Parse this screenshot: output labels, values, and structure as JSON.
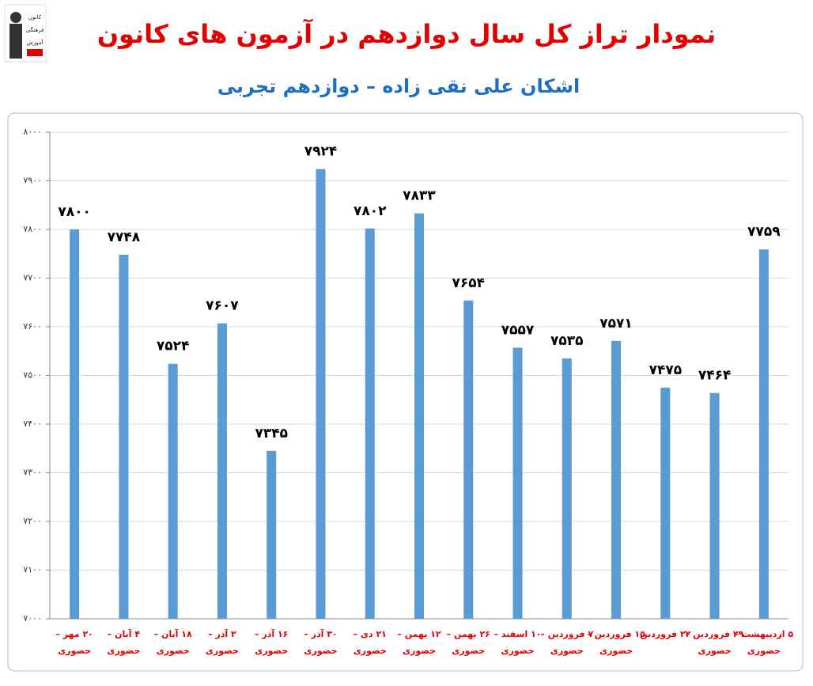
{
  "logo": {
    "lines": [
      "کانون",
      "فرهنگی",
      "آموزش"
    ]
  },
  "chart_data": {
    "type": "bar",
    "title": "نمودار تراز کل سال دوازدهم در آزمون های کانون",
    "subtitle": "اشکان علی نقی زاده – دوازدهم تجربی",
    "categories": [
      [
        "۲۰ مهر –",
        "حضوری"
      ],
      [
        "۴ آبان –",
        "حضوری"
      ],
      [
        "۱۸ آبان –",
        "حضوری"
      ],
      [
        "۲ آذر –",
        "حضوری"
      ],
      [
        "۱۶ آذر –",
        "حضوری"
      ],
      [
        "۳۰ آذر –",
        "حضوری"
      ],
      [
        "۲۱ دی –",
        "حضوری"
      ],
      [
        "۱۲ بهمن –",
        "حضوری"
      ],
      [
        "۲۶ بهمن –",
        "حضوری"
      ],
      [
        "۱۰ اسفند –",
        "حضوری"
      ],
      [
        "۷ فروردین –",
        "حضوری"
      ],
      [
        "۱۵ فروردین –",
        "حضوری"
      ],
      [
        "۲۲ فروردین"
      ],
      [
        "۲۹ فروردین –",
        "حضوری"
      ],
      [
        "۵ اردیبهشت –",
        "حضوری"
      ]
    ],
    "values": [
      7800,
      7748,
      7524,
      7607,
      7345,
      7924,
      7802,
      7833,
      7654,
      7557,
      7535,
      7571,
      7475,
      7464,
      7759
    ],
    "value_labels": [
      "۷۸۰۰",
      "۷۷۴۸",
      "۷۵۲۴",
      "۷۶۰۷",
      "۷۳۴۵",
      "۷۹۲۴",
      "۷۸۰۲",
      "۷۸۳۳",
      "۷۶۵۴",
      "۷۵۵۷",
      "۷۵۳۵",
      "۷۵۷۱",
      "۷۴۷۵",
      "۷۴۶۴",
      "۷۷۵۹"
    ],
    "color": "#5b9bd5",
    "ylim": [
      7000,
      8000
    ],
    "yticks": [
      {
        "value": 7000,
        "label": "۷۰۰۰"
      },
      {
        "value": 7100,
        "label": "۷۱۰۰"
      },
      {
        "value": 7200,
        "label": "۷۲۰۰"
      },
      {
        "value": 7300,
        "label": "۷۳۰۰"
      },
      {
        "value": 7400,
        "label": "۷۴۰۰"
      },
      {
        "value": 7500,
        "label": "۷۵۰۰"
      },
      {
        "value": 7600,
        "label": "۷۶۰۰"
      },
      {
        "value": 7700,
        "label": "۷۷۰۰"
      },
      {
        "value": 7800,
        "label": "۷۸۰۰"
      },
      {
        "value": 7900,
        "label": "۷۹۰۰"
      },
      {
        "value": 8000,
        "label": "۸۰۰۰"
      }
    ],
    "grid": true
  }
}
